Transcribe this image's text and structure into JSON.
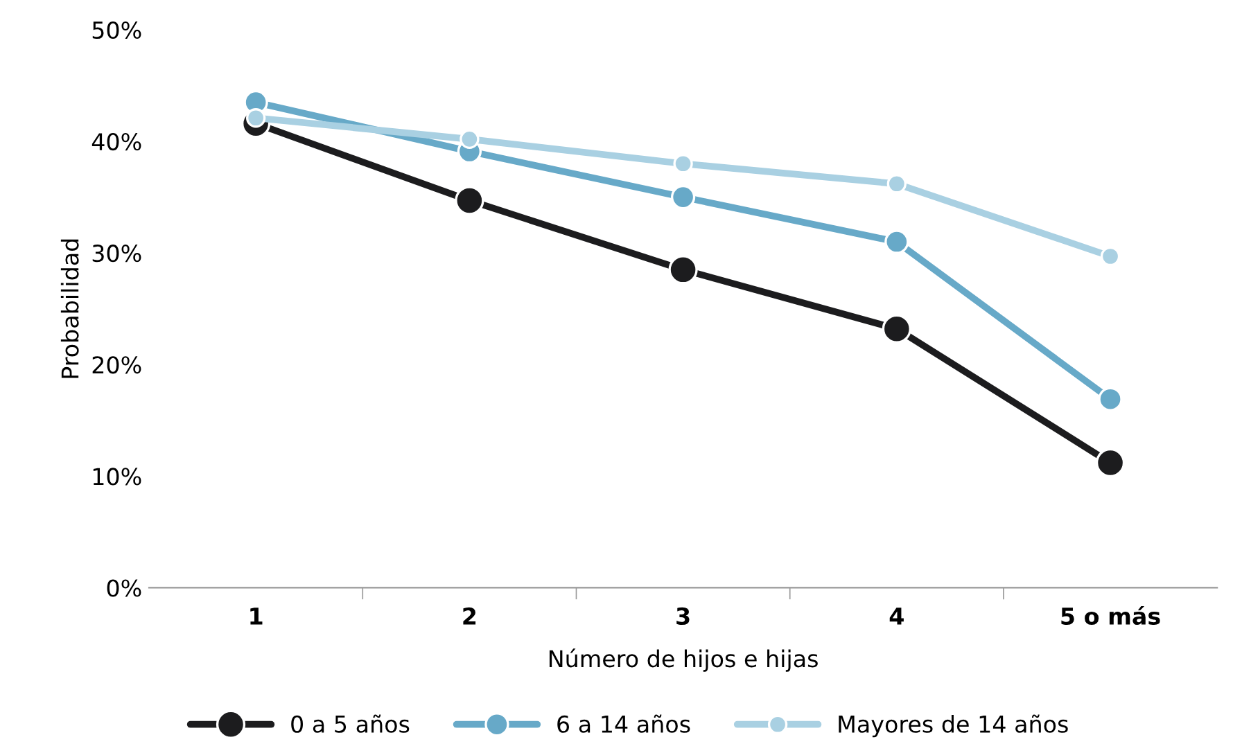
{
  "chart_data": {
    "type": "line",
    "xlabel": "Número de hijos e hijas",
    "ylabel": "Probabilidad",
    "categories": [
      "1",
      "2",
      "3",
      "4",
      "5 o más"
    ],
    "series": [
      {
        "name": "0 a 5 años",
        "color": "#1c1c1e",
        "values": [
          41.6,
          34.7,
          28.5,
          23.2,
          11.2
        ]
      },
      {
        "name": "6 a 14 años",
        "color": "#67a9c8",
        "values": [
          43.5,
          39.1,
          35.0,
          31.0,
          16.9
        ]
      },
      {
        "name": "Mayores de 14 años",
        "color": "#a9d0e2",
        "values": [
          42.1,
          40.2,
          38.0,
          36.2,
          29.7
        ]
      }
    ],
    "ylim": [
      0,
      50
    ],
    "yticks": [
      {
        "value": 0,
        "label": "0%"
      },
      {
        "value": 10,
        "label": "10%"
      },
      {
        "value": 20,
        "label": "20%"
      },
      {
        "value": 30,
        "label": "30%"
      },
      {
        "value": 40,
        "label": "40%"
      },
      {
        "value": 50,
        "label": "50%"
      }
    ],
    "grid": false,
    "legend": "bottom",
    "marker": "circle",
    "line_style": "solid"
  }
}
